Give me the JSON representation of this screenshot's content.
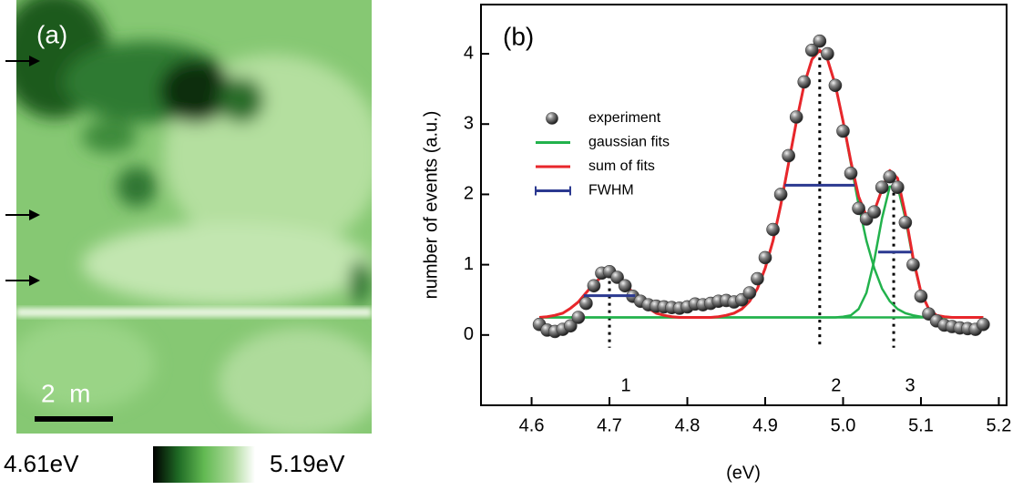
{
  "panel_a": {
    "label": "(a)",
    "scale_bar": "2  m",
    "colorbar": {
      "min_label": "4.61eV",
      "max_label": "5.19eV"
    }
  },
  "chart_data": {
    "type": "scatter",
    "panel_label": "(b)",
    "xlabel": "(eV)",
    "ylabel": "number of events (a.u.)",
    "x": [
      4.61,
      4.62,
      4.63,
      4.64,
      4.65,
      4.66,
      4.67,
      4.68,
      4.69,
      4.7,
      4.71,
      4.72,
      4.73,
      4.74,
      4.75,
      4.76,
      4.77,
      4.78,
      4.79,
      4.8,
      4.81,
      4.82,
      4.83,
      4.84,
      4.85,
      4.86,
      4.87,
      4.88,
      4.89,
      4.9,
      4.91,
      4.92,
      4.93,
      4.94,
      4.95,
      4.96,
      4.97,
      4.98,
      4.99,
      5.0,
      5.01,
      5.02,
      5.03,
      5.04,
      5.05,
      5.06,
      5.07,
      5.08,
      5.09,
      5.1,
      5.11,
      5.12,
      5.13,
      5.14,
      5.15,
      5.16,
      5.17,
      5.18
    ],
    "xlim": [
      4.535,
      5.21
    ],
    "xticks": [
      4.6,
      4.7,
      4.8,
      4.9,
      {
        "value": 5,
        "label": "5.0"
      },
      5.1,
      5.2
    ],
    "ylim": [
      -1,
      4.7
    ],
    "yticks": [
      0,
      1,
      2,
      3,
      4
    ],
    "series": [
      {
        "name": "experiment",
        "color": "#3a3a3a",
        "values": [
          0.15,
          0.07,
          0.05,
          0.08,
          0.13,
          0.25,
          0.45,
          0.7,
          0.88,
          0.9,
          0.82,
          0.7,
          0.55,
          0.48,
          0.43,
          0.41,
          0.4,
          0.39,
          0.38,
          0.4,
          0.44,
          0.43,
          0.45,
          0.48,
          0.49,
          0.47,
          0.5,
          0.6,
          0.8,
          1.1,
          1.5,
          2.0,
          2.55,
          3.1,
          3.6,
          4.05,
          4.18,
          4.0,
          3.55,
          2.9,
          2.3,
          1.8,
          1.65,
          1.75,
          2.1,
          2.25,
          2.1,
          1.6,
          1.0,
          0.55,
          0.3,
          0.2,
          0.14,
          0.12,
          0.1,
          0.09,
          0.08,
          0.15
        ]
      },
      {
        "name": "gaussian fits",
        "color": "#22b24c",
        "curves": [
          [
            0.25,
            0.26,
            0.28,
            0.31,
            0.38,
            0.47,
            0.6,
            0.73,
            0.83,
            0.87,
            0.83,
            0.73,
            0.6,
            0.47,
            0.38,
            0.31,
            0.28,
            0.26,
            0.25,
            0.25,
            0.25,
            0.25,
            0.25,
            0.25,
            0.25,
            0.25,
            0.25,
            0.25,
            0.25,
            0.25,
            0.25,
            0.25,
            0.25,
            0.25,
            0.25,
            0.25,
            0.25,
            0.25,
            0.25,
            0.25,
            0.25,
            0.25,
            0.25,
            0.25,
            0.25,
            0.25,
            0.25,
            0.25,
            0.25,
            0.25,
            0.25,
            0.25,
            0.25,
            0.25,
            0.25,
            0.25,
            0.25,
            0.25
          ],
          [
            0.25,
            0.25,
            0.25,
            0.25,
            0.25,
            0.25,
            0.25,
            0.25,
            0.25,
            0.25,
            0.25,
            0.25,
            0.25,
            0.25,
            0.25,
            0.25,
            0.25,
            0.25,
            0.25,
            0.25,
            0.25,
            0.25,
            0.25,
            0.26,
            0.28,
            0.31,
            0.37,
            0.48,
            0.66,
            0.95,
            1.34,
            1.85,
            2.44,
            3.03,
            3.56,
            3.92,
            4.05,
            3.92,
            3.56,
            3.03,
            2.44,
            1.85,
            1.34,
            0.95,
            0.66,
            0.48,
            0.37,
            0.31,
            0.28,
            0.26,
            0.25,
            0.25,
            0.25,
            0.25,
            0.25,
            0.25,
            0.25,
            0.25
          ],
          [
            0.25,
            0.25,
            0.25,
            0.25,
            0.25,
            0.25,
            0.25,
            0.25,
            0.25,
            0.25,
            0.25,
            0.25,
            0.25,
            0.25,
            0.25,
            0.25,
            0.25,
            0.25,
            0.25,
            0.25,
            0.25,
            0.25,
            0.25,
            0.25,
            0.25,
            0.25,
            0.25,
            0.25,
            0.25,
            0.25,
            0.25,
            0.25,
            0.25,
            0.25,
            0.25,
            0.25,
            0.25,
            0.25,
            0.25,
            0.26,
            0.28,
            0.37,
            0.6,
            1.06,
            1.66,
            2.11,
            2.11,
            1.66,
            1.06,
            0.6,
            0.37,
            0.28,
            0.26,
            0.25,
            0.25,
            0.25,
            0.25,
            0.25
          ]
        ]
      },
      {
        "name": "sum of fits",
        "color": "#e8262b",
        "values": [
          0.25,
          0.26,
          0.28,
          0.31,
          0.38,
          0.47,
          0.6,
          0.73,
          0.83,
          0.87,
          0.83,
          0.73,
          0.6,
          0.47,
          0.38,
          0.31,
          0.28,
          0.26,
          0.25,
          0.25,
          0.25,
          0.25,
          0.25,
          0.26,
          0.28,
          0.31,
          0.37,
          0.48,
          0.66,
          0.95,
          1.34,
          1.85,
          2.44,
          3.03,
          3.56,
          3.92,
          4.05,
          3.92,
          3.56,
          3.04,
          2.47,
          1.97,
          1.69,
          1.76,
          2.07,
          2.34,
          2.23,
          1.72,
          1.09,
          0.61,
          0.37,
          0.28,
          0.26,
          0.25,
          0.25,
          0.25,
          0.25,
          0.25
        ]
      }
    ],
    "fwhm": {
      "name": "FWHM",
      "color": "#2b3990",
      "segments": [
        {
          "y": 0.56,
          "x": [
            4.667,
            4.733
          ]
        },
        {
          "y": 2.13,
          "x": [
            4.925,
            5.015
          ]
        },
        {
          "y": 1.18,
          "x": [
            5.045,
            5.088
          ]
        }
      ]
    },
    "peaks": [
      {
        "label": "1",
        "x": 4.7
      },
      {
        "label": "2",
        "x": 4.97
      },
      {
        "label": "3",
        "x": 5.065
      }
    ],
    "legend": "upper left"
  }
}
